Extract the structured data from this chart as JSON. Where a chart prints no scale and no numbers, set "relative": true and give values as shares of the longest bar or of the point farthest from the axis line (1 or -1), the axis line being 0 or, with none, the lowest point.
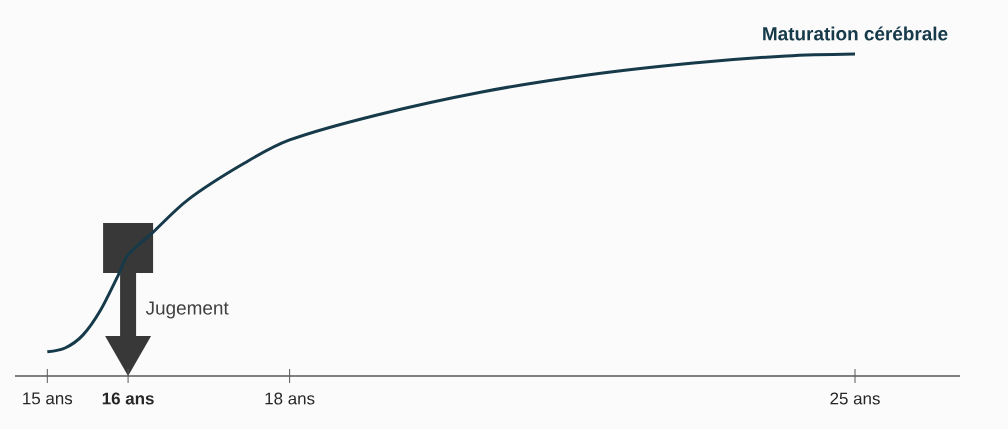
{
  "chart_data": {
    "type": "line",
    "relative": true,
    "x": [
      15,
      15.22,
      15.44,
      15.66,
      15.88,
      16,
      16.31,
      16.74,
      17.4,
      18,
      19.07,
      20.38,
      21.69,
      23,
      24.15,
      25
    ],
    "series": [
      {
        "name": "Maturation cérébrale",
        "color": "#163a4a",
        "values": [
          0.075,
          0.087,
          0.127,
          0.205,
          0.314,
          0.376,
          0.447,
          0.547,
          0.655,
          0.733,
          0.81,
          0.882,
          0.935,
          0.972,
          0.994,
          1
        ]
      }
    ],
    "xlim": [
      14.6,
      26.3
    ],
    "xticks": [
      {
        "value": 15,
        "label": "15 ans"
      },
      {
        "value": 16,
        "label": "**16 ans**"
      },
      {
        "value": 18,
        "label": "18 ans"
      },
      {
        "value": 25,
        "label": "25 ans"
      }
    ],
    "annotations": [
      {
        "text": "Jugement",
        "x": 16,
        "y": 0.376
      }
    ],
    "grid": false,
    "legend": false,
    "marker": "none",
    "line_style": "solid"
  }
}
